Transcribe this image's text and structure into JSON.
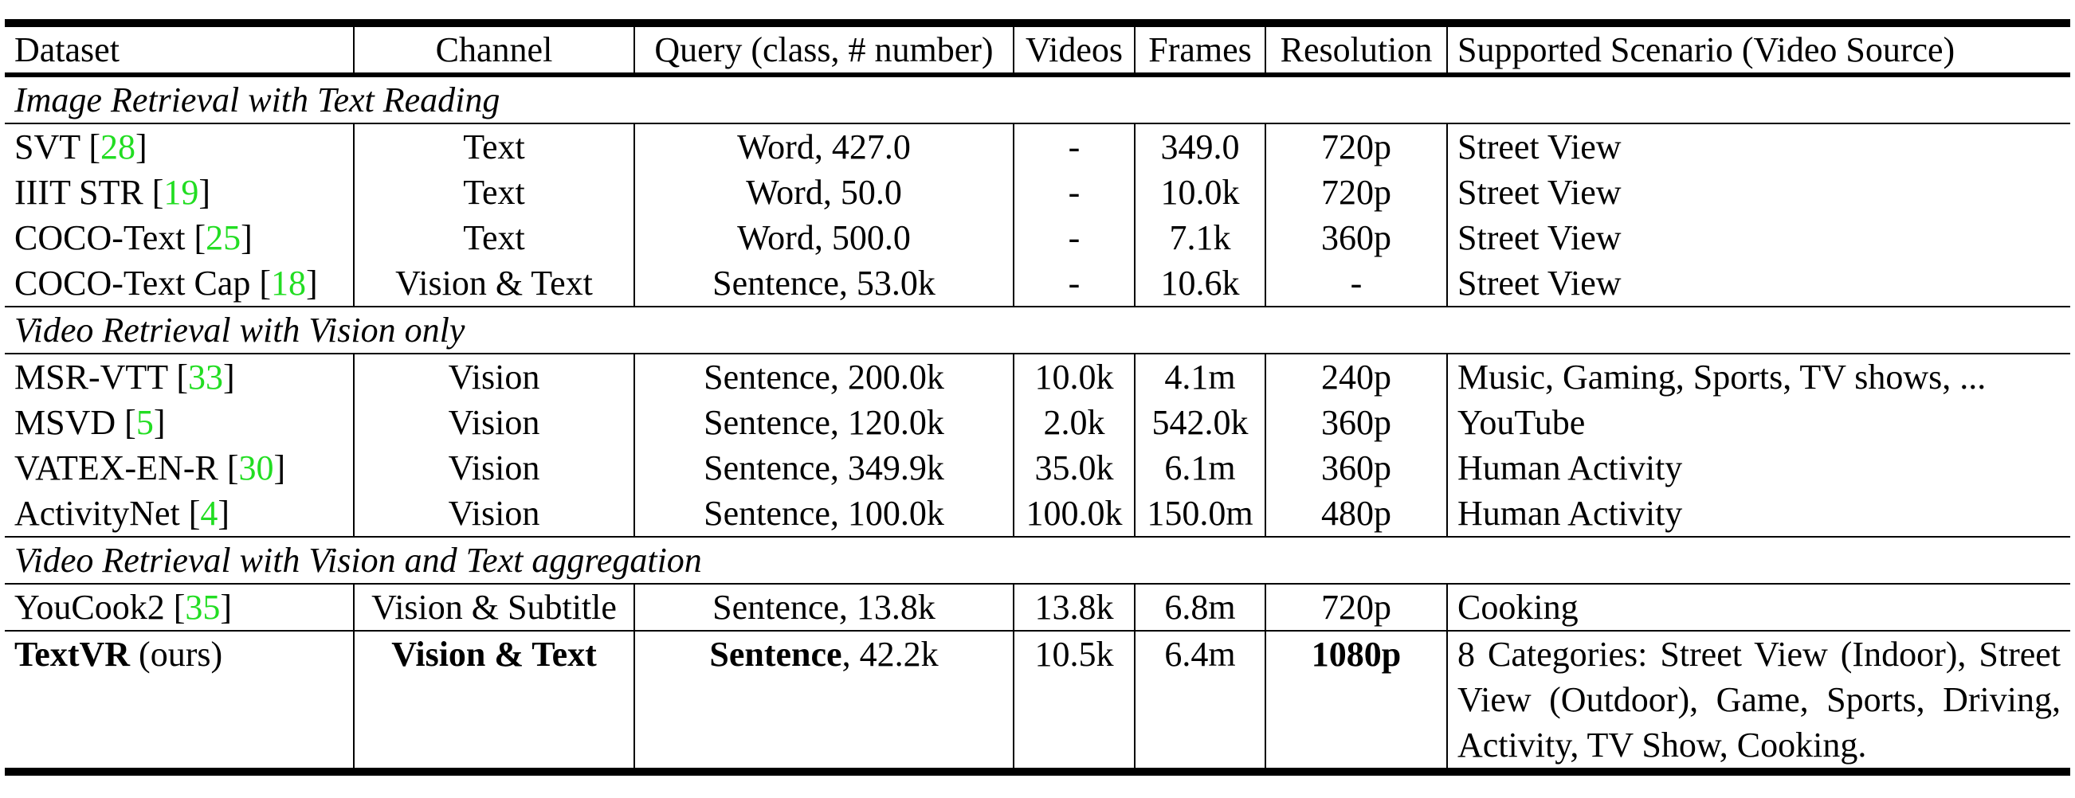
{
  "table": {
    "headers": [
      "Dataset",
      "Channel",
      "Query (class, # number)",
      "Videos",
      "Frames",
      "Resolution",
      "Supported Scenario (Video Source)"
    ],
    "sections": [
      {
        "title": "Image Retrieval with Text Reading",
        "rows": [
          {
            "name": "SVT",
            "ref": "28",
            "channel": "Text",
            "query": "Word, 427.0",
            "videos": "-",
            "frames": "349.0",
            "resolution": "720p",
            "scenario": "Street View"
          },
          {
            "name": "IIIT STR",
            "ref": "19",
            "channel": "Text",
            "query": "Word, 50.0",
            "videos": "-",
            "frames": "10.0k",
            "resolution": "720p",
            "scenario": "Street View"
          },
          {
            "name": "COCO-Text",
            "ref": "25",
            "channel": "Text",
            "query": "Word, 500.0",
            "videos": "-",
            "frames": "7.1k",
            "resolution": "360p",
            "scenario": "Street View"
          },
          {
            "name": "COCO-Text Cap",
            "ref": "18",
            "channel": "Vision & Text",
            "query": "Sentence, 53.0k",
            "videos": "-",
            "frames": "10.6k",
            "resolution": "-",
            "scenario": "Street View"
          }
        ]
      },
      {
        "title": "Video Retrieval with Vision only",
        "rows": [
          {
            "name": "MSR-VTT",
            "ref": "33",
            "channel": "Vision",
            "query": "Sentence, 200.0k",
            "videos": "10.0k",
            "frames": "4.1m",
            "resolution": "240p",
            "scenario": "Music, Gaming, Sports, TV shows, ..."
          },
          {
            "name": "MSVD",
            "ref": "5",
            "channel": "Vision",
            "query": "Sentence, 120.0k",
            "videos": "2.0k",
            "frames": "542.0k",
            "resolution": "360p",
            "scenario": "YouTube"
          },
          {
            "name": "VATEX-EN-R",
            "ref": "30",
            "channel": "Vision",
            "query": "Sentence, 349.9k",
            "videos": "35.0k",
            "frames": "6.1m",
            "resolution": "360p",
            "scenario": "Human Activity"
          },
          {
            "name": "ActivityNet",
            "ref": "4",
            "channel": "Vision",
            "query": "Sentence, 100.0k",
            "videos": "100.0k",
            "frames": "150.0m",
            "resolution": "480p",
            "scenario": "Human Activity"
          }
        ]
      },
      {
        "title": "Video Retrieval with Vision and Text aggregation",
        "rows": [
          {
            "name": "YouCook2",
            "ref": "35",
            "channel": "Vision & Subtitle",
            "query": "Sentence, 13.8k",
            "videos": "13.8k",
            "frames": "6.8m",
            "resolution": "720p",
            "scenario": "Cooking"
          }
        ]
      }
    ],
    "textvr": {
      "name": "TextVR",
      "suffix": " (ours)",
      "channel": "Vision & Text",
      "query_bold": "Sentence",
      "query_rest": ", 42.2k",
      "videos": "10.5k",
      "frames": "6.4m",
      "resolution": "1080p",
      "scenario": "8 Categories: Street View (Indoor), Street View (Outdoor), Game, Sports, Driving, Activity, TV Show, Cooking."
    }
  }
}
